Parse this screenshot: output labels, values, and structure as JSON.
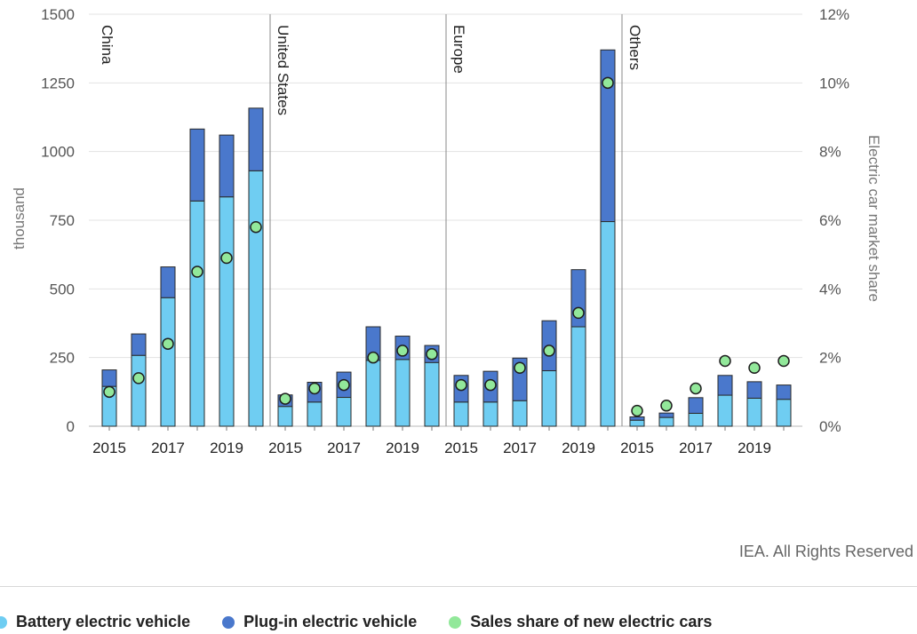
{
  "chart_data": {
    "type": "bar",
    "stacked": true,
    "ylabel": "thousand",
    "y2label": "Electric car market share",
    "ylim": [
      0,
      1500
    ],
    "y2lim": [
      0,
      12
    ],
    "yticks": [
      "0",
      "250",
      "500",
      "750",
      "1000",
      "1250",
      "1500"
    ],
    "y2ticks": [
      "0%",
      "2%",
      "4%",
      "6%",
      "8%",
      "10%",
      "12%"
    ],
    "grid": true,
    "legend_position": "bottom",
    "colors": {
      "bev": "#6fcdf2",
      "phev": "#4a78cc",
      "share": "#92e89a",
      "grid": "#e3e3e3",
      "divider": "#888888"
    },
    "panels": [
      {
        "region": "China",
        "x": [
          "2015",
          "2016",
          "2017",
          "2018",
          "2019",
          "2020"
        ],
        "x_tick_labels": [
          "2015",
          "",
          "2017",
          "",
          "2019",
          ""
        ],
        "bev": [
          145,
          258,
          468,
          820,
          835,
          930
        ],
        "phev": [
          60,
          78,
          112,
          262,
          225,
          228
        ],
        "share": [
          1.0,
          1.4,
          2.4,
          4.5,
          4.9,
          5.8
        ]
      },
      {
        "region": "United States",
        "x": [
          "2015",
          "2016",
          "2017",
          "2018",
          "2019",
          "2020"
        ],
        "x_tick_labels": [
          "2015",
          "",
          "2017",
          "",
          "2019",
          ""
        ],
        "bev": [
          72,
          88,
          105,
          240,
          243,
          232
        ],
        "phev": [
          42,
          72,
          92,
          122,
          85,
          62
        ],
        "share": [
          0.8,
          1.1,
          1.2,
          2.0,
          2.2,
          2.1
        ]
      },
      {
        "region": "Europe",
        "x": [
          "2015",
          "2016",
          "2017",
          "2018",
          "2019",
          "2020"
        ],
        "x_tick_labels": [
          "2015",
          "",
          "2017",
          "",
          "2019",
          ""
        ],
        "bev": [
          88,
          88,
          93,
          202,
          362,
          745
        ],
        "phev": [
          97,
          112,
          155,
          182,
          208,
          625
        ],
        "share": [
          1.2,
          1.2,
          1.7,
          2.2,
          3.3,
          10.0
        ]
      },
      {
        "region": "Others",
        "x": [
          "2015",
          "2016",
          "2017",
          "2018",
          "2019",
          "2020"
        ],
        "x_tick_labels": [
          "2015",
          "",
          "2017",
          "",
          "2019",
          ""
        ],
        "bev": [
          22,
          32,
          47,
          113,
          102,
          98
        ],
        "phev": [
          12,
          16,
          57,
          72,
          60,
          52
        ],
        "share": [
          0.45,
          0.6,
          1.1,
          1.9,
          1.7,
          1.9
        ]
      }
    ],
    "series": [
      {
        "name": "Battery electric vehicle",
        "key": "bev"
      },
      {
        "name": "Plug-in electric vehicle",
        "key": "phev"
      },
      {
        "name": "Sales share of new electric cars",
        "key": "share"
      }
    ]
  },
  "credit": "IEA. All Rights Reserved",
  "legend": {
    "bev": "Battery electric vehicle",
    "phev": "Plug-in electric vehicle",
    "share": "Sales share of new electric cars"
  }
}
